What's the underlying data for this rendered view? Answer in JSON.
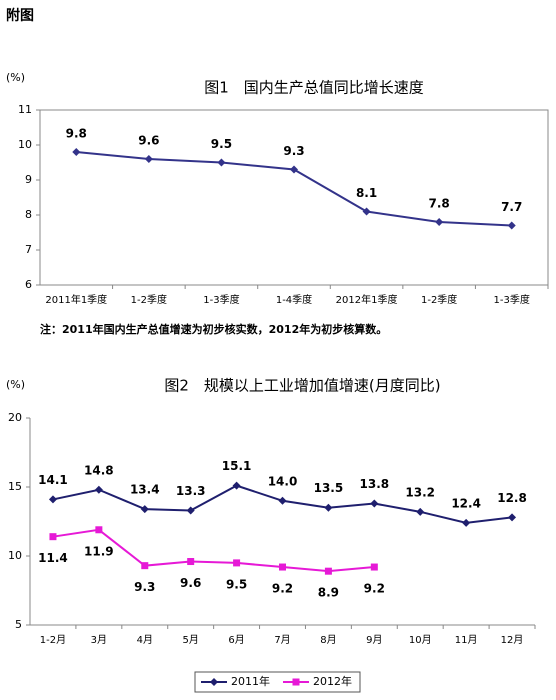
{
  "header": {
    "title": "附图"
  },
  "chart_data": [
    {
      "type": "line",
      "title": "图1　国内生产总值同比增长速度",
      "y_label": "(%)",
      "categories": [
        "2011年1季度",
        "1-2季度",
        "1-3季度",
        "1-4季度",
        "2012年1季度",
        "1-2季度",
        "1-3季度"
      ],
      "series": [
        {
          "name": "国内生产总值同比增长速度",
          "color": "#33338a",
          "values": [
            9.8,
            9.6,
            9.5,
            9.3,
            8.1,
            7.8,
            7.7
          ]
        }
      ],
      "ylim": [
        6,
        11
      ],
      "yticks": [
        6,
        7,
        8,
        9,
        10,
        11
      ],
      "grid": false,
      "note": "注：2011年国内生产总值增速为初步核实数，2012年为初步核算数。"
    },
    {
      "type": "line",
      "title": "图2　规模以上工业增加值增速(月度同比)",
      "y_label": "(%)",
      "categories": [
        "1-2月",
        "3月",
        "4月",
        "5月",
        "6月",
        "7月",
        "8月",
        "9月",
        "10月",
        "11月",
        "12月"
      ],
      "series": [
        {
          "name": "2011年",
          "color": "#1f1f6e",
          "values": [
            14.1,
            14.8,
            13.4,
            13.3,
            15.1,
            14.0,
            13.5,
            13.8,
            13.2,
            12.4,
            12.8
          ],
          "value_labels": [
            "14.1",
            "14.8",
            "13.4",
            "13.3",
            "15.1",
            "14.0",
            "13.5",
            "13.8",
            "13.2",
            "12.4",
            "12.8"
          ]
        },
        {
          "name": "2012年",
          "color": "#e619d6",
          "values": [
            11.4,
            11.9,
            9.3,
            9.6,
            9.5,
            9.2,
            8.9,
            9.2,
            null,
            null,
            null
          ]
        }
      ],
      "ylim": [
        5,
        20
      ],
      "yticks": [
        5,
        10,
        15,
        20
      ],
      "grid": false,
      "legend": "bottom"
    }
  ]
}
